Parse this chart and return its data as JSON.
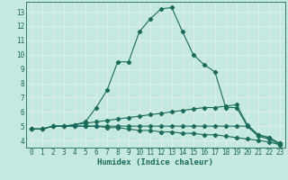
{
  "xlabel": "Humidex (Indice chaleur)",
  "bg_color": "#c5e8e0",
  "grid_color": "#dff0ec",
  "line_color": "#1a6b5a",
  "xlim": [
    -0.5,
    23.5
  ],
  "ylim": [
    3.5,
    13.7
  ],
  "yticks": [
    4,
    5,
    6,
    7,
    8,
    9,
    10,
    11,
    12,
    13
  ],
  "xticks": [
    0,
    1,
    2,
    3,
    4,
    5,
    6,
    7,
    8,
    9,
    10,
    11,
    12,
    13,
    14,
    15,
    16,
    17,
    18,
    19,
    20,
    21,
    22,
    23
  ],
  "series": [
    {
      "x": [
        0,
        1,
        2,
        3,
        4,
        5,
        6,
        7,
        8,
        9,
        10,
        11,
        12,
        13,
        14,
        15,
        16,
        17,
        18,
        19,
        20,
        21,
        22,
        23
      ],
      "y": [
        4.8,
        4.8,
        5.0,
        5.0,
        5.1,
        5.3,
        6.3,
        7.5,
        9.5,
        9.5,
        11.6,
        12.5,
        13.2,
        13.3,
        11.6,
        10.0,
        9.3,
        8.8,
        6.3,
        6.3,
        5.0,
        4.3,
        4.1,
        3.7
      ]
    },
    {
      "x": [
        0,
        1,
        2,
        3,
        4,
        5,
        6,
        7,
        8,
        9,
        10,
        11,
        12,
        13,
        14,
        15,
        16,
        17,
        18,
        19,
        20,
        21,
        22,
        23
      ],
      "y": [
        4.8,
        4.8,
        5.0,
        5.0,
        5.1,
        5.2,
        5.3,
        5.4,
        5.5,
        5.6,
        5.7,
        5.8,
        5.9,
        6.0,
        6.1,
        6.2,
        6.3,
        6.3,
        6.4,
        6.5,
        5.1,
        4.4,
        4.2,
        3.8
      ]
    },
    {
      "x": [
        0,
        1,
        2,
        3,
        4,
        5,
        6,
        7,
        8,
        9,
        10,
        11,
        12,
        13,
        14,
        15,
        16,
        17,
        18,
        19,
        20,
        21,
        22,
        23
      ],
      "y": [
        4.8,
        4.8,
        5.0,
        5.0,
        5.0,
        5.0,
        5.0,
        5.0,
        5.0,
        5.0,
        5.0,
        5.0,
        5.0,
        5.0,
        5.0,
        5.0,
        5.0,
        5.0,
        5.0,
        5.0,
        5.0,
        4.4,
        4.2,
        3.8
      ]
    },
    {
      "x": [
        0,
        1,
        2,
        3,
        4,
        5,
        6,
        7,
        8,
        9,
        10,
        11,
        12,
        13,
        14,
        15,
        16,
        17,
        18,
        19,
        20,
        21,
        22,
        23
      ],
      "y": [
        4.8,
        4.8,
        5.0,
        5.0,
        5.0,
        5.0,
        5.0,
        4.9,
        4.9,
        4.8,
        4.7,
        4.7,
        4.6,
        4.6,
        4.5,
        4.5,
        4.4,
        4.4,
        4.3,
        4.2,
        4.1,
        4.0,
        3.9,
        3.7
      ]
    }
  ]
}
